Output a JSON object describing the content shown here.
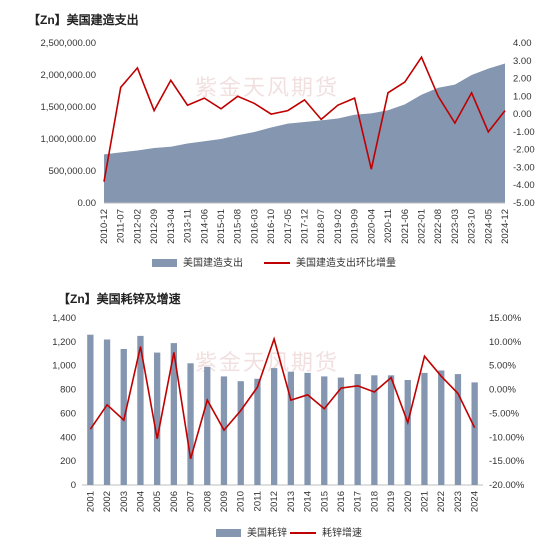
{
  "watermark": "紫金天风期货",
  "chart_data": [
    {
      "type": "area+line",
      "title": "【Zn】美国建造支出",
      "x": [
        "2010-12",
        "2011-07",
        "2012-02",
        "2012-09",
        "2013-04",
        "2013-11",
        "2014-06",
        "2015-01",
        "2015-08",
        "2016-03",
        "2016-10",
        "2017-05",
        "2017-12",
        "2018-07",
        "2019-02",
        "2019-09",
        "2020-04",
        "2020-11",
        "2021-06",
        "2022-01",
        "2022-08",
        "2023-03",
        "2023-10",
        "2024-05",
        "2024-12"
      ],
      "y_left_ticks": [
        "0.00",
        "500,000.00",
        "1,000,000.00",
        "1,500,000.00",
        "2,000,000.00",
        "2,500,000.00"
      ],
      "y_right_ticks": [
        "-5.00",
        "-4.00",
        "-3.00",
        "-2.00",
        "-1.00",
        "0.00",
        "1.00",
        "2.00",
        "3.00",
        "4.00"
      ],
      "ylim_left": [
        0,
        2500000
      ],
      "ylim_right": [
        -5,
        4
      ],
      "legend": [
        "美国建造支出",
        "美国建造支出环比增量"
      ],
      "legend_position": "bottom",
      "colors": {
        "area": "#8496b0",
        "line": "#c00000"
      },
      "series": [
        {
          "name": "美国建造支出",
          "kind": "area",
          "values": [
            760000,
            790000,
            820000,
            860000,
            880000,
            930000,
            965000,
            1000000,
            1060000,
            1110000,
            1180000,
            1240000,
            1265000,
            1290000,
            1320000,
            1380000,
            1400000,
            1450000,
            1540000,
            1690000,
            1800000,
            1850000,
            2000000,
            2100000,
            2180000
          ]
        },
        {
          "name": "美国建造支出环比增量",
          "kind": "line",
          "values": [
            -3.8,
            1.5,
            2.6,
            0.2,
            1.9,
            0.5,
            0.9,
            0.3,
            1.0,
            0.6,
            0.0,
            0.2,
            0.8,
            -0.3,
            0.5,
            0.9,
            -3.1,
            1.2,
            1.8,
            3.2,
            1.0,
            -0.5,
            1.2,
            -1.0,
            0.2
          ]
        }
      ]
    },
    {
      "type": "bar+line",
      "title": "【Zn】美国耗锌及增速",
      "categories": [
        "2001",
        "2002",
        "2003",
        "2004",
        "2005",
        "2006",
        "2007",
        "2008",
        "2009",
        "2010",
        "2011",
        "2012",
        "2013",
        "2014",
        "2015",
        "2016",
        "2017",
        "2018",
        "2019",
        "2020",
        "2021",
        "2022",
        "2023",
        "2024"
      ],
      "y_left_ticks": [
        "0",
        "200",
        "400",
        "600",
        "800",
        "1,000",
        "1,200",
        "1,400"
      ],
      "y_right_ticks": [
        "-20.00%",
        "-15.00%",
        "-10.00%",
        "-5.00%",
        "0.00%",
        "5.00%",
        "10.00%",
        "15.00%"
      ],
      "ylim_left": [
        0,
        1400
      ],
      "ylim_right": [
        -20,
        15
      ],
      "legend": [
        "美国耗锌",
        "耗锌增速"
      ],
      "legend_position": "bottom",
      "colors": {
        "bar": "#8496b0",
        "line": "#c00000"
      },
      "series": [
        {
          "name": "美国耗锌",
          "kind": "bar",
          "values": [
            1260,
            1220,
            1140,
            1250,
            1110,
            1190,
            1020,
            990,
            910,
            870,
            890,
            980,
            950,
            940,
            910,
            900,
            930,
            920,
            920,
            880,
            940,
            960,
            930,
            860
          ]
        },
        {
          "name": "耗锌增速",
          "kind": "line",
          "values": [
            -8.3,
            -3.2,
            -6.4,
            9.0,
            -10.3,
            7.8,
            -14.5,
            -2.2,
            -8.5,
            -4.4,
            0.5,
            10.6,
            -2.2,
            -1.1,
            -4.0,
            0.3,
            0.8,
            -0.5,
            2.5,
            -6.9,
            7.0,
            2.8,
            -0.8,
            -8.0
          ]
        }
      ]
    }
  ]
}
